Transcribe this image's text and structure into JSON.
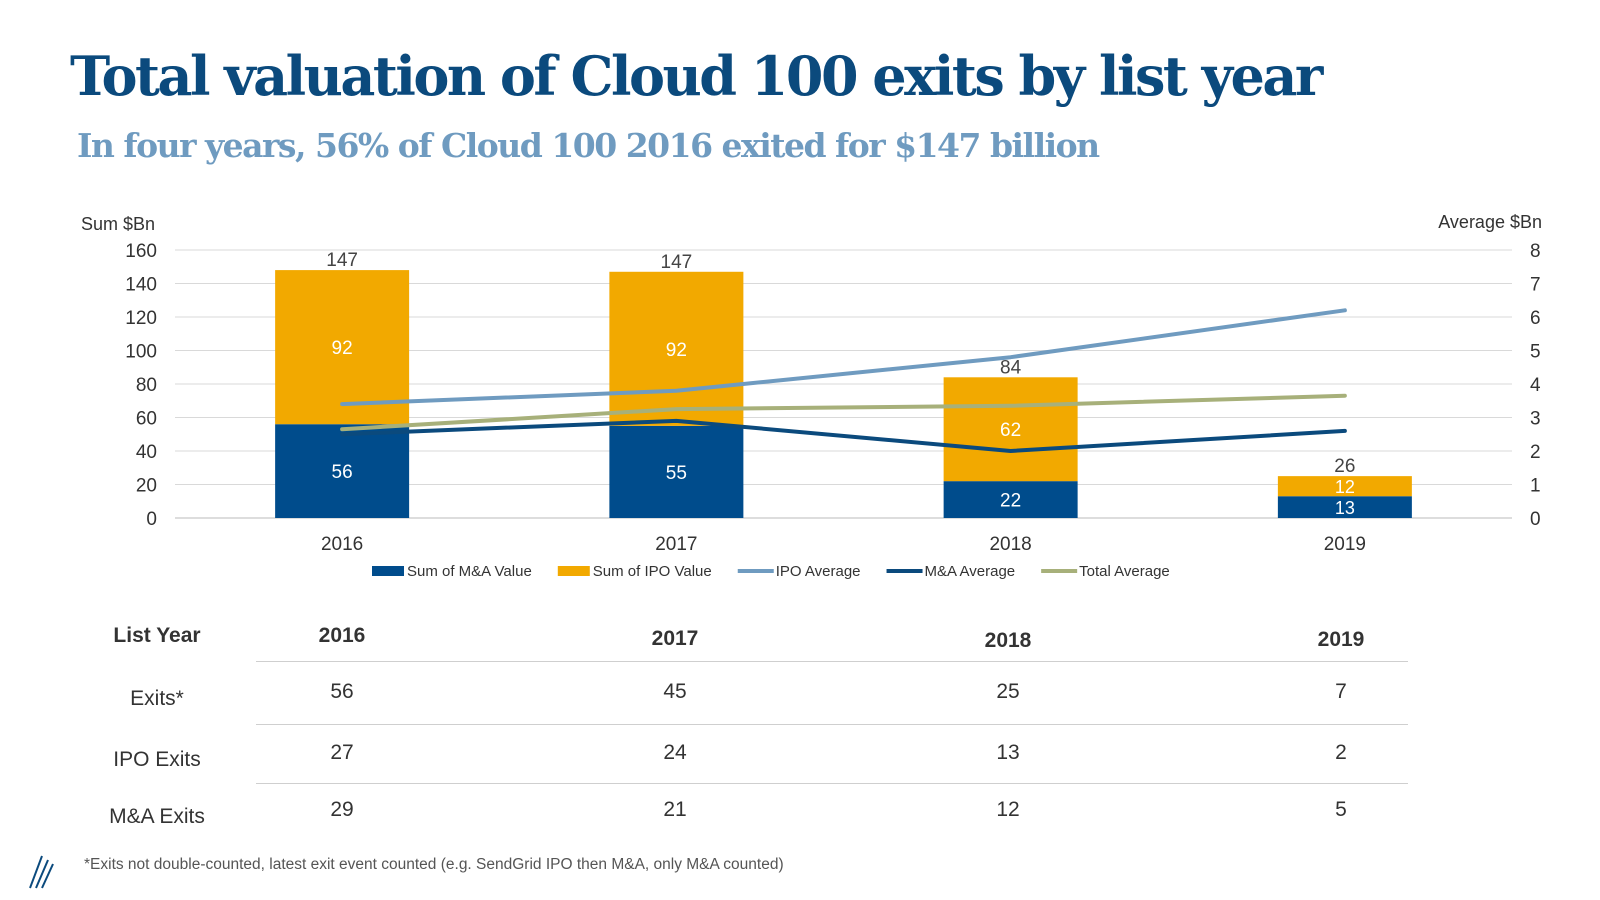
{
  "title": "Total valuation of Cloud 100 exits by list year",
  "subtitle": "In four years, 56% of Cloud 100 2016 exited for $147 billion",
  "chart_data": {
    "type": "bar",
    "stacked": true,
    "categories": [
      "2016",
      "2017",
      "2018",
      "2019"
    ],
    "series": [
      {
        "name": "Sum of M&A Value",
        "type": "bar",
        "axis": "left",
        "color": "#004c8c",
        "values": [
          56,
          55,
          22,
          13
        ]
      },
      {
        "name": "Sum of IPO Value",
        "type": "bar",
        "axis": "left",
        "color": "#f2a900",
        "values": [
          92,
          92,
          62,
          12
        ]
      },
      {
        "name": "IPO Average",
        "type": "line",
        "axis": "right",
        "color": "#6f9bc0",
        "values": [
          3.4,
          3.8,
          4.8,
          6.2
        ]
      },
      {
        "name": "M&A Average",
        "type": "line",
        "axis": "right",
        "color": "#0b4a7d",
        "values": [
          2.5,
          2.9,
          2.0,
          2.6
        ]
      },
      {
        "name": "Total Average",
        "type": "line",
        "axis": "right",
        "color": "#a7b07a",
        "values": [
          2.65,
          3.25,
          3.35,
          3.65
        ]
      }
    ],
    "totals": [
      147,
      147,
      84,
      26
    ],
    "ylabel": "Sum $Bn",
    "ylabel_right": "Average $Bn",
    "ylim": [
      0,
      160
    ],
    "yticks": [
      0,
      20,
      40,
      60,
      80,
      100,
      120,
      140,
      160
    ],
    "ylim_right": [
      0,
      8
    ],
    "yticks_right": [
      0,
      1,
      2,
      3,
      4,
      5,
      6,
      7,
      8
    ],
    "grid": true,
    "legend_position": "bottom"
  },
  "table": {
    "header_label": "List Year",
    "years": [
      "2016",
      "2017",
      "2018",
      "2019"
    ],
    "rows": [
      {
        "label": "Exits*",
        "values": [
          "56",
          "45",
          "25",
          "7"
        ]
      },
      {
        "label": "IPO Exits",
        "values": [
          "27",
          "24",
          "13",
          "2"
        ]
      },
      {
        "label": "M&A Exits",
        "values": [
          "29",
          "21",
          "12",
          "5"
        ]
      }
    ]
  },
  "footnote": "*Exits not double-counted, latest exit event counted (e.g. SendGrid IPO then M&A, only M&A counted)",
  "logo_icon": "brand-slash-logo-icon"
}
